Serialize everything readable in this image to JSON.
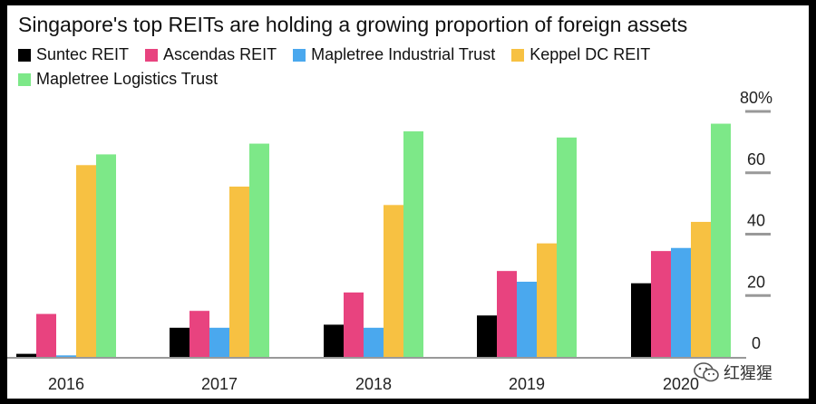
{
  "chart_data": {
    "type": "bar",
    "title": "Singapore's top REITs are holding a growing proportion of foreign assets",
    "categories": [
      "2016",
      "2017",
      "2018",
      "2019",
      "2020"
    ],
    "series": [
      {
        "name": "Suntec REIT",
        "color": "#000000",
        "values": [
          1,
          9.5,
          10.5,
          13.5,
          24
        ]
      },
      {
        "name": "Ascendas REIT",
        "color": "#e8437f",
        "values": [
          14,
          15,
          21,
          28,
          34.5
        ]
      },
      {
        "name": "Mapletree Industrial Trust",
        "color": "#4aa8ee",
        "values": [
          0.5,
          9.5,
          9.5,
          24.5,
          35.5
        ]
      },
      {
        "name": "Keppel DC REIT",
        "color": "#f7c142",
        "values": [
          62.5,
          55.5,
          49.5,
          37,
          44
        ]
      },
      {
        "name": "Mapletree Logistics Trust",
        "color": "#7de888",
        "values": [
          66,
          69.5,
          73.5,
          71.5,
          76
        ]
      }
    ],
    "yaxis": {
      "min": 0,
      "max": 80,
      "ticks": [
        0,
        20,
        40,
        60,
        80
      ],
      "tick_labels": [
        "0",
        "20",
        "40",
        "60",
        "80%"
      ],
      "position": "right"
    },
    "xlabel": "",
    "ylabel": ""
  },
  "watermark": {
    "label": "红猩猩",
    "icon": "wechat-icon"
  }
}
